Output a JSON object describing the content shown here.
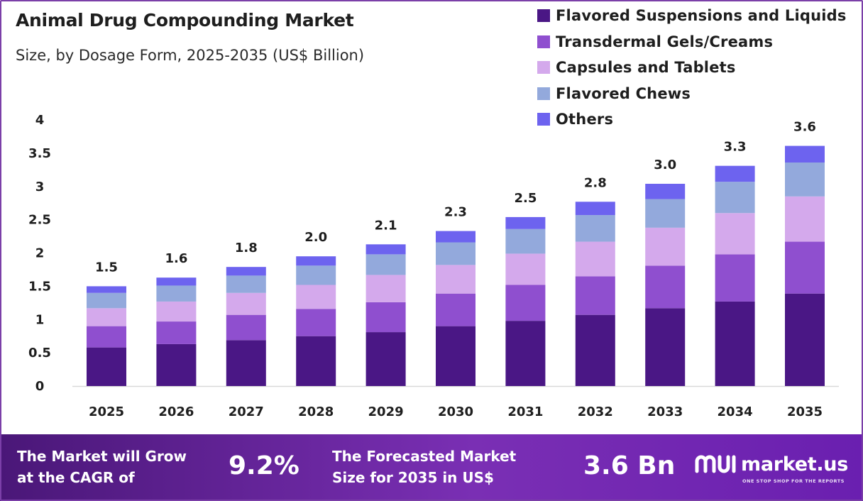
{
  "header": {
    "title": "Animal Drug Compounding Market",
    "subtitle": "Size, by Dosage Form, 2025-2035 (US$ Billion)"
  },
  "chart_data": {
    "type": "bar",
    "stacked": true,
    "title": "Animal Drug Compounding Market",
    "subtitle": "Size, by Dosage Form, 2025-2035 (US$ Billion)",
    "xlabel": "",
    "ylabel": "",
    "ylim": [
      0,
      4
    ],
    "yticks": [
      0,
      0.5,
      1,
      1.5,
      2,
      2.5,
      3,
      3.5,
      4
    ],
    "ytick_labels": [
      "0",
      "0.5",
      "1",
      "1.5",
      "2",
      "2.5",
      "3",
      "3.5",
      "4"
    ],
    "categories": [
      "2025",
      "2026",
      "2027",
      "2028",
      "2029",
      "2030",
      "2031",
      "2032",
      "2033",
      "2034",
      "2035"
    ],
    "totals_labels": [
      "1.5",
      "1.6",
      "1.8",
      "2.0",
      "2.1",
      "2.3",
      "2.5",
      "2.8",
      "3.0",
      "3.3",
      "3.6"
    ],
    "legend_position": "top-right",
    "series": [
      {
        "name": "Flavored Suspensions and Liquids",
        "color": "#4a1785",
        "values": [
          0.58,
          0.63,
          0.69,
          0.75,
          0.81,
          0.9,
          0.98,
          1.07,
          1.17,
          1.27,
          1.39
        ]
      },
      {
        "name": "Transdermal Gels/Creams",
        "color": "#8f4fcf",
        "values": [
          0.32,
          0.34,
          0.38,
          0.41,
          0.45,
          0.49,
          0.54,
          0.58,
          0.64,
          0.71,
          0.78
        ]
      },
      {
        "name": "Capsules and Tablets",
        "color": "#d4a9ec",
        "values": [
          0.27,
          0.3,
          0.33,
          0.36,
          0.41,
          0.43,
          0.47,
          0.52,
          0.57,
          0.62,
          0.68
        ]
      },
      {
        "name": "Flavored Chews",
        "color": "#93a9dc",
        "values": [
          0.23,
          0.24,
          0.26,
          0.29,
          0.31,
          0.34,
          0.37,
          0.4,
          0.43,
          0.47,
          0.51
        ]
      },
      {
        "name": "Others",
        "color": "#6d63ef",
        "values": [
          0.1,
          0.12,
          0.13,
          0.14,
          0.15,
          0.17,
          0.18,
          0.2,
          0.23,
          0.24,
          0.25
        ]
      }
    ]
  },
  "footer": {
    "cagr_label_line1": "The Market will Grow",
    "cagr_label_line2": "at the CAGR of",
    "cagr_value": "9.2%",
    "forecast_label_line1": "The Forecasted Market",
    "forecast_label_line2": "Size for 2035 in US$",
    "forecast_value": "3.6 Bn",
    "brand_name": "market.us",
    "brand_tagline": "ONE STOP SHOP FOR THE REPORTS"
  }
}
